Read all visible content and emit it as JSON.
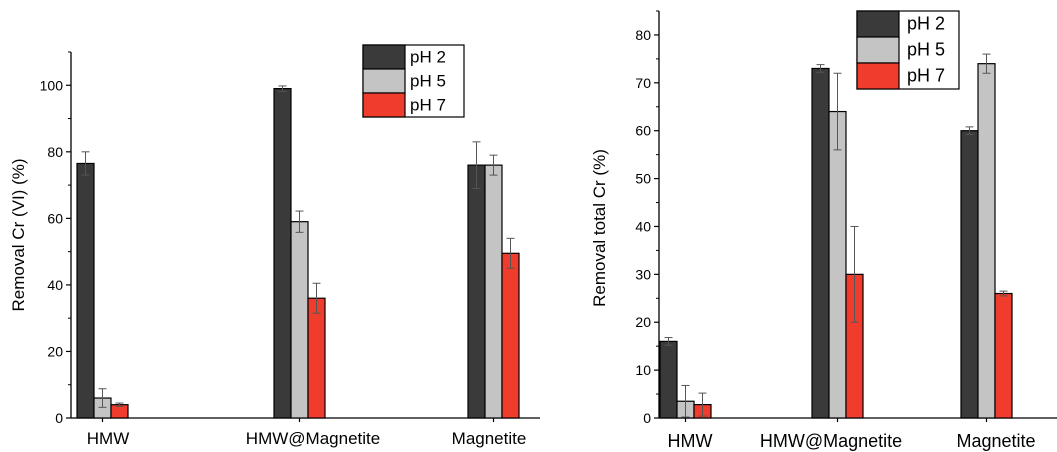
{
  "chart_data": [
    {
      "type": "bar",
      "title": "",
      "xlabel": "",
      "ylabel": "Removal Cr (VI) (%)",
      "ylim": [
        0,
        110
      ],
      "yticks": [
        0,
        20,
        40,
        60,
        80,
        100
      ],
      "categories": [
        "HMW",
        "HMW@Magnetite",
        "Magnetite"
      ],
      "legend_position": "top-right",
      "series": [
        {
          "name": "pH 2",
          "color": "#3a3a3a",
          "values": [
            76.5,
            99,
            76
          ],
          "errors": [
            3.5,
            0.8,
            7
          ]
        },
        {
          "name": "pH 5",
          "color": "#c4c4c4",
          "values": [
            6,
            59,
            76
          ],
          "errors": [
            2.8,
            3.2,
            3
          ]
        },
        {
          "name": "pH 7",
          "color": "#f03c2d",
          "values": [
            4,
            36,
            49.5
          ],
          "errors": [
            0.5,
            4.5,
            4.5
          ]
        }
      ]
    },
    {
      "type": "bar",
      "title": "",
      "xlabel": "",
      "ylabel": "Removal total Cr (%)",
      "ylim": [
        0,
        85
      ],
      "yticks": [
        0,
        10,
        20,
        30,
        40,
        50,
        60,
        70,
        80
      ],
      "categories": [
        "HMW",
        "HMW@Magnetite",
        "Magnetite"
      ],
      "legend_position": "top-right",
      "series": [
        {
          "name": "pH 2",
          "color": "#3a3a3a",
          "values": [
            16,
            73,
            60
          ],
          "errors": [
            0.8,
            0.8,
            0.8
          ]
        },
        {
          "name": "pH 5",
          "color": "#c4c4c4",
          "values": [
            3.5,
            64,
            74
          ],
          "errors": [
            3.3,
            8,
            2
          ]
        },
        {
          "name": "pH 7",
          "color": "#f03c2d",
          "values": [
            2.8,
            30,
            26
          ],
          "errors": [
            2.4,
            10,
            0.5
          ]
        }
      ]
    }
  ]
}
